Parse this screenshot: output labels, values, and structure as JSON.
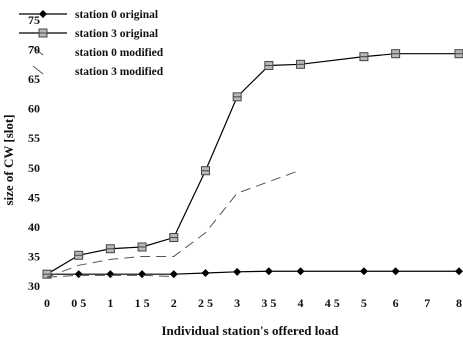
{
  "chart_data": {
    "type": "line",
    "xlabel": "Individual station's offered load",
    "ylabel": "size of CW [slot]",
    "categories": [
      "0",
      "0.5",
      "1",
      "1.5",
      "2",
      "2.5",
      "3",
      "3.5",
      "4",
      "4.5",
      "5",
      "6",
      "7",
      "8"
    ],
    "x_tick_labels": [
      "0",
      "0 5",
      "1",
      "1 5",
      "2",
      "2 5",
      "3",
      "3 5",
      "4",
      "4 5",
      "5",
      "6",
      "7",
      "8"
    ],
    "y_ticks": [
      "30",
      "35",
      "40",
      "45",
      "50",
      "55",
      "60",
      "65",
      "70",
      "75"
    ],
    "ylim": [
      30,
      75
    ],
    "grid": false,
    "legend_position": "top-left",
    "series": [
      {
        "name": "station 0 original",
        "marker": "diamond",
        "line_style": "solid",
        "color": "#000000",
        "points": [
          [
            0,
            32.0
          ],
          [
            0.5,
            32.0
          ],
          [
            1,
            32.0
          ],
          [
            1.5,
            32.0
          ],
          [
            2,
            32.0
          ],
          [
            2.5,
            32.2
          ],
          [
            3,
            32.4
          ],
          [
            3.5,
            32.5
          ],
          [
            4,
            32.5
          ],
          [
            5,
            32.5
          ],
          [
            6,
            32.5
          ],
          [
            8,
            32.5
          ]
        ]
      },
      {
        "name": "station 3 original",
        "marker": "square",
        "line_style": "solid",
        "color": "#000000",
        "points": [
          [
            0,
            32.0
          ],
          [
            0.5,
            35.2
          ],
          [
            1,
            36.3
          ],
          [
            1.5,
            36.6
          ],
          [
            2,
            38.2
          ],
          [
            2.5,
            49.5
          ],
          [
            3,
            62.0
          ],
          [
            3.5,
            67.3
          ],
          [
            4,
            67.5
          ],
          [
            5,
            68.8
          ],
          [
            6,
            69.3
          ],
          [
            8,
            69.3
          ]
        ]
      },
      {
        "name": "station 0 modified",
        "marker": "none",
        "line_style": "dashed",
        "color": "#555555",
        "points": [
          [
            0,
            31.5
          ],
          [
            0.5,
            31.8
          ],
          [
            1,
            31.8
          ],
          [
            1.5,
            31.8
          ],
          [
            2,
            31.6
          ]
        ]
      },
      {
        "name": "station 3 modified",
        "marker": "none",
        "line_style": "dashed",
        "color": "#555555",
        "points": [
          [
            0,
            31.5
          ],
          [
            0.5,
            33.5
          ],
          [
            1,
            34.5
          ],
          [
            1.5,
            35.0
          ],
          [
            2,
            35.0
          ],
          [
            2.5,
            39.0
          ],
          [
            3,
            45.7
          ],
          [
            4,
            49.6
          ]
        ]
      }
    ]
  }
}
